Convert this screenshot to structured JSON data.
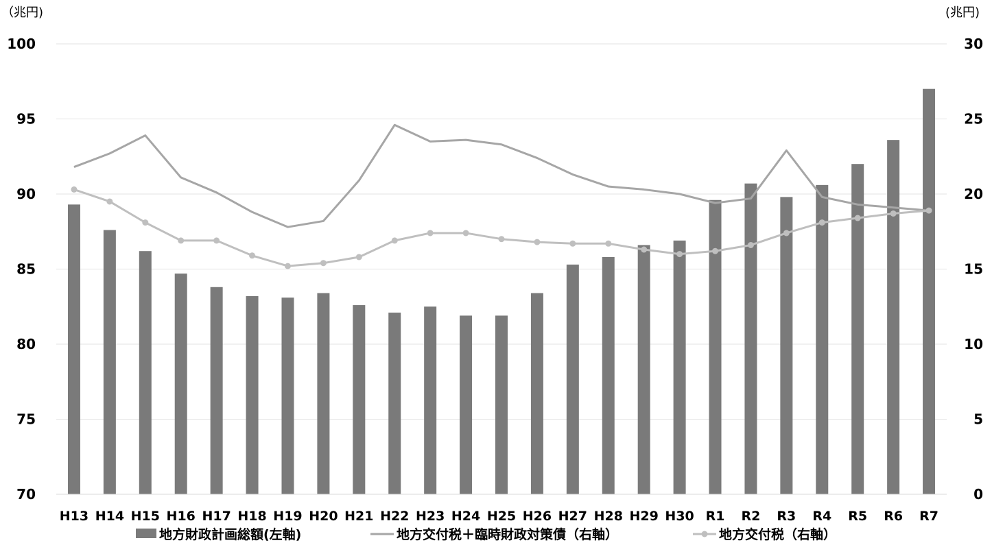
{
  "chart_data": {
    "type": "bar",
    "categories": [
      "H13",
      "H14",
      "H15",
      "H16",
      "H17",
      "H18",
      "H19",
      "H20",
      "H21",
      "H22",
      "H23",
      "H24",
      "H25",
      "H26",
      "H27",
      "H28",
      "H29",
      "H30",
      "R1",
      "R2",
      "R3",
      "R4",
      "R5",
      "R6",
      "R7"
    ],
    "left_axis": {
      "unit": "（兆円)",
      "ylim": [
        70,
        100
      ],
      "ticks": [
        70,
        75,
        80,
        85,
        90,
        95,
        100
      ]
    },
    "right_axis": {
      "unit": "(兆円)",
      "ylim": [
        0,
        30
      ],
      "ticks": [
        0,
        5,
        10,
        15,
        20,
        25,
        30
      ]
    },
    "series": [
      {
        "name": "地方財政計画総額(左軸)",
        "kind": "bar",
        "axis": "left",
        "color": "#7a7a7a",
        "values": [
          89.3,
          87.6,
          86.2,
          84.7,
          83.8,
          83.2,
          83.1,
          83.4,
          82.6,
          82.1,
          82.5,
          81.9,
          81.9,
          83.4,
          85.3,
          85.8,
          86.6,
          86.9,
          89.6,
          90.7,
          89.8,
          90.6,
          92.0,
          93.6,
          97.0
        ]
      },
      {
        "name": "地方交付税＋臨時財政対策債（右軸）",
        "kind": "line",
        "axis": "right",
        "color": "#a6a6a6",
        "values": [
          21.8,
          22.7,
          23.9,
          21.1,
          20.1,
          18.8,
          17.8,
          18.2,
          20.9,
          24.6,
          23.5,
          23.6,
          23.3,
          22.4,
          21.3,
          20.5,
          20.3,
          20.0,
          19.4,
          19.7,
          22.9,
          19.8,
          19.3,
          19.1,
          18.9
        ]
      },
      {
        "name": "地方交付税（右軸）",
        "kind": "line-marker",
        "axis": "right",
        "color": "#bfbfbf",
        "values": [
          20.3,
          19.5,
          18.1,
          16.9,
          16.9,
          15.9,
          15.2,
          15.4,
          15.8,
          16.9,
          17.4,
          17.4,
          17.0,
          16.8,
          16.7,
          16.7,
          16.3,
          16.0,
          16.2,
          16.6,
          17.4,
          18.1,
          18.4,
          18.7,
          18.9
        ]
      }
    ],
    "grid": true,
    "legend_position": "bottom"
  }
}
